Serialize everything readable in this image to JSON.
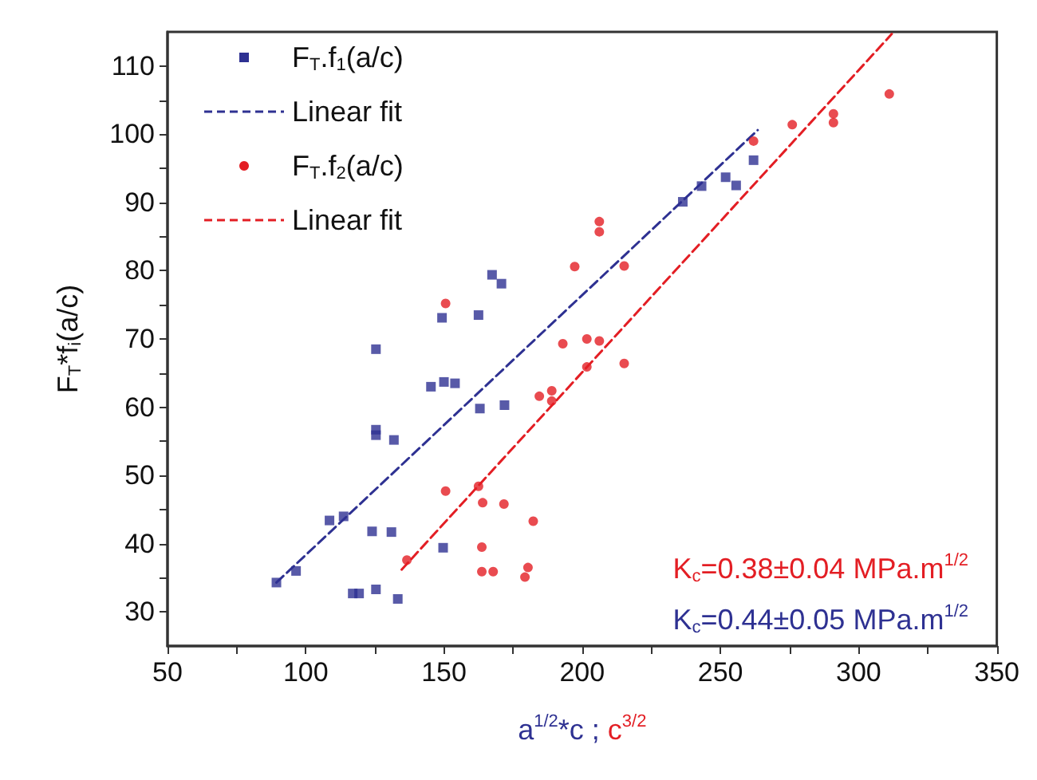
{
  "chart_data": {
    "type": "scatter",
    "xlabel": "a$^{1/2}$*c ; c$^{3/2}$",
    "ylabel": "F$_{T}$*f$_{i}$(a/c)",
    "xlim": [
      50,
      350
    ],
    "xticks": [
      50,
      {
        "value": 75,
        "label": null
      },
      100,
      {
        "value": 125,
        "label": null
      },
      150,
      {
        "value": 175,
        "label": null
      },
      200,
      {
        "value": 225,
        "label": null
      },
      250,
      {
        "value": 275,
        "label": null
      },
      300,
      {
        "value": 325,
        "label": null
      },
      350
    ],
    "ylim": [
      25,
      115
    ],
    "yticks": [
      30,
      {
        "value": 35,
        "label": null
      },
      40,
      {
        "value": 45,
        "label": null
      },
      50,
      {
        "value": 55,
        "label": null
      },
      60,
      {
        "value": 65,
        "label": null
      },
      70,
      {
        "value": 75,
        "label": null
      },
      80,
      {
        "value": 85,
        "label": null
      },
      90,
      {
        "value": 95,
        "label": null
      },
      100,
      {
        "value": 105,
        "label": null
      },
      110
    ],
    "grid": false,
    "legend": "top left",
    "series": [
      {
        "name": "F$_{T}$.f$_{1}$(a/c)",
        "marker": "square",
        "color": "#2e3192",
        "x": [
          89.4,
          96.5,
          108.6,
          113.7,
          117,
          119.3,
          125.4,
          124,
          131,
          133.3,
          125.4,
          125.4,
          125.4,
          131.9,
          149.7,
          149.3,
          145.3,
          150,
          154,
          162.5,
          163,
          167.4,
          170.8,
          171.9,
          236.4,
          243.2,
          251.9,
          255.7,
          262
        ],
        "values": [
          34.3,
          36.0,
          43.4,
          44.0,
          32.7,
          32.7,
          33.3,
          41.8,
          41.7,
          31.9,
          68.5,
          56.7,
          55.9,
          55.2,
          39.4,
          73.1,
          63.0,
          63.7,
          63.5,
          73.5,
          59.8,
          79.4,
          78.1,
          60.3,
          90.1,
          92.4,
          93.7,
          92.5,
          96.2
        ]
      },
      {
        "name": "Linear fit",
        "type": "line",
        "line_style": "dashed",
        "marker": "none",
        "color": "#2e3192",
        "x": [
          89.4,
          263.5
        ],
        "values": [
          34.3,
          100.6
        ]
      },
      {
        "name": "F$_{T}$.f$_{2}$(a/c)",
        "marker": "circle",
        "color": "#e31e24",
        "x": [
          150.6,
          150.6,
          136.6,
          162.5,
          164,
          171.7,
          182.3,
          163.7,
          163.7,
          167.8,
          180.4,
          179.3,
          197.3,
          206.2,
          206.2,
          215.2,
          193,
          201.7,
          206.2,
          201.7,
          215.2,
          184.5,
          189,
          189,
          262,
          276,
          290.9,
          290.9,
          311.1
        ],
        "values": [
          75.2,
          47.7,
          37.6,
          48.4,
          46.0,
          45.8,
          43.3,
          39.5,
          35.9,
          35.9,
          36.5,
          35.1,
          80.6,
          87.2,
          85.7,
          80.7,
          69.3,
          70.0,
          69.7,
          65.9,
          66.4,
          61.6,
          62.4,
          60.9,
          99.0,
          101.4,
          103.0,
          101.7,
          105.9
        ]
      },
      {
        "name": "Linear fit",
        "type": "line",
        "line_style": "dashed",
        "marker": "none",
        "color": "#e31e24",
        "x": [
          134.7,
          312
        ],
        "values": [
          36.2,
          114.7
        ]
      }
    ],
    "annotations": [
      "K$_{c}$=0.38±0.04 MPa.m$^{1/2}$",
      "K$_{c}$=0.44±0.05 MPa.m$^{1/2}$"
    ]
  }
}
